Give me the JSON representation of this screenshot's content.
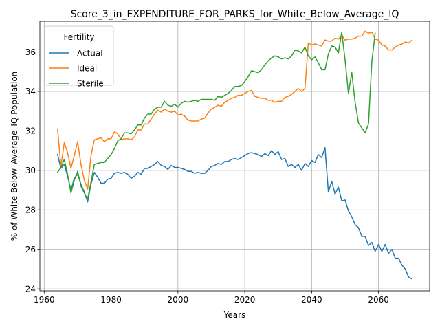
{
  "chart_data": {
    "type": "line",
    "title": "Score_3_in_EXPENDITURE_FOR_PARKS_for_White_Below_Average_IQ",
    "xlabel": "Years",
    "ylabel": "% of White Below_Average_IQ Population",
    "xlim": [
      1958.7,
      2075.3
    ],
    "ylim": [
      23.9,
      37.55
    ],
    "xticks": [
      1960,
      1980,
      2000,
      2020,
      2040,
      2060
    ],
    "yticks": [
      24,
      26,
      28,
      30,
      32,
      34,
      36
    ],
    "grid": true,
    "legend": {
      "title": "Fertility",
      "position": "upper-left"
    },
    "series": [
      {
        "name": "Actual",
        "color": "#1f77b4",
        "x": [
          1964,
          1965,
          1966,
          1967,
          1968,
          1969,
          1970,
          1971,
          1972,
          1973,
          1974,
          1975,
          1976,
          1977,
          1978,
          1979,
          1980,
          1981,
          1982,
          1983,
          1984,
          1985,
          1986,
          1987,
          1988,
          1989,
          1990,
          1991,
          1992,
          1993,
          1994,
          1995,
          1996,
          1997,
          1998,
          1999,
          2000,
          2001,
          2002,
          2003,
          2004,
          2005,
          2006,
          2007,
          2008,
          2009,
          2010,
          2011,
          2012,
          2013,
          2014,
          2015,
          2016,
          2017,
          2018,
          2019,
          2020,
          2021,
          2022,
          2023,
          2024,
          2025,
          2026,
          2027,
          2028,
          2029,
          2030,
          2031,
          2032,
          2033,
          2034,
          2035,
          2036,
          2037,
          2038,
          2039,
          2040,
          2041,
          2042,
          2043,
          2044,
          2045,
          2046,
          2047,
          2048,
          2049,
          2050,
          2051,
          2052,
          2053,
          2054,
          2055,
          2056,
          2057,
          2058,
          2059,
          2060,
          2061,
          2062,
          2063,
          2064,
          2065,
          2066,
          2067,
          2068,
          2069,
          2070
        ],
        "y": [
          30.8,
          30.1,
          30.3,
          29.7,
          29.0,
          29.6,
          29.8,
          29.3,
          28.9,
          28.4,
          29.3,
          29.9,
          29.65,
          29.35,
          29.35,
          29.55,
          29.6,
          29.85,
          29.9,
          29.85,
          29.9,
          29.8,
          29.6,
          29.7,
          29.9,
          29.8,
          30.1,
          30.1,
          30.2,
          30.3,
          30.45,
          30.25,
          30.2,
          30.05,
          30.25,
          30.15,
          30.15,
          30.1,
          30.05,
          29.95,
          29.95,
          29.85,
          29.9,
          29.85,
          29.85,
          30.0,
          30.2,
          30.25,
          30.35,
          30.3,
          30.45,
          30.45,
          30.55,
          30.6,
          30.55,
          30.65,
          30.75,
          30.85,
          30.9,
          30.85,
          30.8,
          30.7,
          30.85,
          30.75,
          31.0,
          30.8,
          30.95,
          30.55,
          30.6,
          30.2,
          30.3,
          30.15,
          30.3,
          30.0,
          30.35,
          30.2,
          30.5,
          30.4,
          30.8,
          30.65,
          31.15,
          28.9,
          29.45,
          28.8,
          29.15,
          28.45,
          28.5,
          27.95,
          27.65,
          27.25,
          27.1,
          26.65,
          26.65,
          26.2,
          26.35,
          25.9,
          26.25,
          25.9,
          26.25,
          25.8,
          26.0,
          25.55,
          25.55,
          25.2,
          25.0,
          24.6,
          24.5
        ]
      },
      {
        "name": "Ideal",
        "color": "#ff7f0e",
        "x": [
          1964,
          1965,
          1966,
          1967,
          1968,
          1969,
          1970,
          1971,
          1972,
          1973,
          1974,
          1975,
          1976,
          1977,
          1978,
          1979,
          1980,
          1981,
          1982,
          1983,
          1984,
          1985,
          1986,
          1987,
          1988,
          1989,
          1990,
          1991,
          1992,
          1993,
          1994,
          1995,
          1996,
          1997,
          1998,
          1999,
          2000,
          2001,
          2002,
          2003,
          2004,
          2005,
          2006,
          2007,
          2008,
          2009,
          2010,
          2011,
          2012,
          2013,
          2014,
          2015,
          2016,
          2017,
          2018,
          2019,
          2020,
          2021,
          2022,
          2023,
          2024,
          2025,
          2026,
          2027,
          2028,
          2029,
          2030,
          2031,
          2032,
          2033,
          2034,
          2035,
          2036,
          2037,
          2038,
          2039,
          2040,
          2041,
          2042,
          2043,
          2044,
          2045,
          2046,
          2047,
          2048,
          2049,
          2050,
          2051,
          2052,
          2053,
          2054,
          2055,
          2056,
          2057,
          2058,
          2059,
          2060,
          2061,
          2062,
          2063,
          2064,
          2065,
          2066,
          2067,
          2068,
          2069,
          2070
        ],
        "y": [
          32.1,
          30.2,
          31.4,
          30.9,
          30.1,
          30.75,
          31.45,
          30.3,
          29.5,
          29.05,
          30.75,
          31.55,
          31.6,
          31.65,
          31.45,
          31.6,
          31.6,
          31.95,
          31.85,
          31.55,
          31.6,
          31.6,
          31.55,
          31.7,
          32.05,
          32.05,
          32.35,
          32.35,
          32.6,
          32.85,
          33.05,
          32.95,
          33.1,
          33.0,
          32.95,
          33.0,
          32.8,
          32.85,
          32.75,
          32.55,
          32.5,
          32.5,
          32.5,
          32.6,
          32.65,
          32.9,
          33.1,
          33.2,
          33.3,
          33.25,
          33.45,
          33.55,
          33.65,
          33.7,
          33.8,
          33.8,
          33.9,
          34.0,
          34.05,
          33.75,
          33.7,
          33.65,
          33.65,
          33.55,
          33.55,
          33.45,
          33.5,
          33.5,
          33.7,
          33.75,
          33.85,
          34.0,
          34.15,
          34.0,
          34.15,
          36.45,
          36.35,
          36.4,
          36.35,
          36.3,
          36.6,
          36.55,
          36.55,
          36.7,
          36.65,
          36.85,
          36.6,
          36.65,
          36.65,
          36.7,
          36.8,
          36.8,
          37.05,
          36.95,
          37.0,
          36.65,
          36.6,
          36.35,
          36.3,
          36.1,
          36.1,
          36.25,
          36.35,
          36.4,
          36.5,
          36.45,
          36.6
        ]
      },
      {
        "name": "Sterile",
        "color": "#2ca02c",
        "x": [
          1964,
          1965,
          1966,
          1967,
          1968,
          1969,
          1970,
          1971,
          1972,
          1973,
          1974,
          1975,
          1976,
          1977,
          1978,
          1979,
          1980,
          1981,
          1982,
          1983,
          1984,
          1985,
          1986,
          1987,
          1988,
          1989,
          1990,
          1991,
          1992,
          1993,
          1994,
          1995,
          1996,
          1997,
          1998,
          1999,
          2000,
          2001,
          2002,
          2003,
          2004,
          2005,
          2006,
          2007,
          2008,
          2009,
          2010,
          2011,
          2012,
          2013,
          2014,
          2015,
          2016,
          2017,
          2018,
          2019,
          2020,
          2021,
          2022,
          2023,
          2024,
          2025,
          2026,
          2027,
          2028,
          2029,
          2030,
          2031,
          2032,
          2033,
          2034,
          2035,
          2036,
          2037,
          2038,
          2039,
          2040,
          2041,
          2042,
          2043,
          2044,
          2045,
          2046,
          2047,
          2048,
          2049,
          2050,
          2051,
          2052,
          2053,
          2054,
          2055,
          2056,
          2057,
          2058,
          2059
        ],
        "y": [
          29.9,
          30.15,
          30.55,
          29.8,
          28.85,
          29.5,
          29.95,
          29.2,
          28.85,
          28.55,
          29.4,
          30.3,
          30.35,
          30.4,
          30.4,
          30.6,
          30.8,
          31.1,
          31.5,
          31.6,
          31.9,
          31.9,
          31.85,
          32.05,
          32.3,
          32.3,
          32.65,
          32.85,
          32.85,
          33.1,
          33.2,
          33.2,
          33.5,
          33.3,
          33.25,
          33.35,
          33.2,
          33.4,
          33.5,
          33.45,
          33.5,
          33.55,
          33.5,
          33.6,
          33.6,
          33.6,
          33.6,
          33.55,
          33.75,
          33.7,
          33.8,
          33.9,
          34.05,
          34.25,
          34.25,
          34.3,
          34.5,
          34.75,
          35.05,
          35.0,
          34.95,
          35.1,
          35.35,
          35.55,
          35.7,
          35.8,
          35.75,
          35.65,
          35.7,
          35.65,
          35.8,
          36.1,
          36.05,
          35.95,
          36.25,
          35.8,
          35.6,
          35.75,
          35.45,
          35.1,
          35.1,
          35.9,
          36.3,
          36.25,
          35.95,
          37.0,
          35.6,
          33.9,
          34.95,
          33.45,
          32.4,
          32.15,
          31.9,
          32.35,
          35.5,
          36.95
        ]
      }
    ]
  }
}
